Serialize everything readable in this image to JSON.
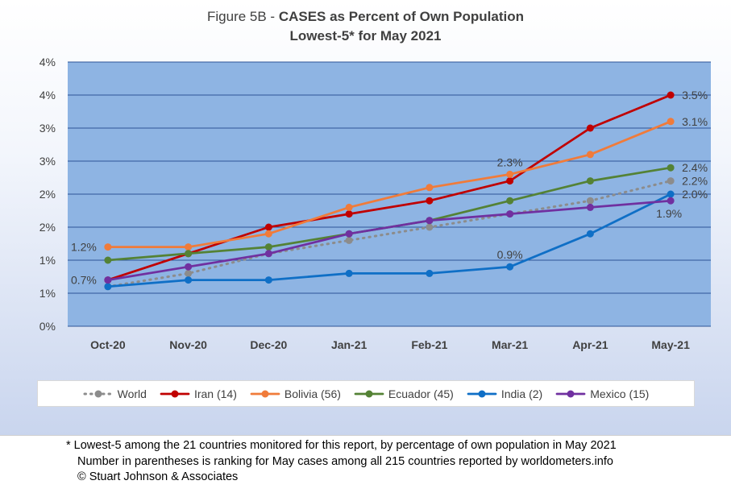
{
  "title": {
    "prefix": "Figure 5B - ",
    "bold_part": "CASES as Percent of Own Population",
    "line2": "Lowest-5* for May 2021"
  },
  "chart_data": {
    "type": "line",
    "categories": [
      "Oct-20",
      "Nov-20",
      "Dec-20",
      "Jan-21",
      "Feb-21",
      "Mar-21",
      "Apr-21",
      "May-21"
    ],
    "y_tick_labels": [
      "0%",
      "1%",
      "1%",
      "2%",
      "2%",
      "3%",
      "3%",
      "4%",
      "4%"
    ],
    "ylim": [
      0,
      4
    ],
    "grid": true,
    "legend_position": "bottom",
    "series": [
      {
        "name": "World",
        "color": "#8c8c8c",
        "dashed": true,
        "values": [
          0.6,
          0.8,
          1.1,
          1.3,
          1.5,
          1.7,
          1.9,
          2.2
        ]
      },
      {
        "name": "Iran (14)",
        "color": "#c00000",
        "dashed": false,
        "values": [
          0.7,
          1.1,
          1.5,
          1.7,
          1.9,
          2.2,
          3.0,
          3.5
        ]
      },
      {
        "name": "Bolivia (56)",
        "color": "#f07b3a",
        "dashed": false,
        "values": [
          1.2,
          1.2,
          1.4,
          1.8,
          2.1,
          2.3,
          2.6,
          3.1
        ]
      },
      {
        "name": "Ecuador (45)",
        "color": "#548235",
        "dashed": false,
        "values": [
          1.0,
          1.1,
          1.2,
          1.4,
          1.6,
          1.9,
          2.2,
          2.4
        ]
      },
      {
        "name": "India (2)",
        "color": "#0f6fc6",
        "dashed": false,
        "values": [
          0.6,
          0.7,
          0.7,
          0.8,
          0.8,
          0.9,
          1.4,
          2.0
        ]
      },
      {
        "name": "Mexico (15)",
        "color": "#7030a0",
        "dashed": false,
        "values": [
          0.7,
          0.9,
          1.1,
          1.4,
          1.6,
          1.7,
          1.8,
          1.9
        ]
      }
    ],
    "annotations": [
      {
        "text": "1.2%",
        "series": "Bolivia (56)",
        "index": 0,
        "pos": "left"
      },
      {
        "text": "0.7%",
        "series": "Iran (14)",
        "index": 0,
        "pos": "left"
      },
      {
        "text": "2.3%",
        "series": "Bolivia (56)",
        "index": 5,
        "pos": "above"
      },
      {
        "text": "0.9%",
        "series": "India (2)",
        "index": 5,
        "pos": "above"
      },
      {
        "text": "3.5%",
        "series": "Iran (14)",
        "index": 7,
        "pos": "right"
      },
      {
        "text": "3.1%",
        "series": "Bolivia (56)",
        "index": 7,
        "pos": "right"
      },
      {
        "text": "2.4%",
        "series": "Ecuador (45)",
        "index": 7,
        "pos": "right"
      },
      {
        "text": "2.2%",
        "series": "World",
        "index": 7,
        "pos": "right"
      },
      {
        "text": "2.0%",
        "series": "India (2)",
        "index": 7,
        "pos": "right"
      },
      {
        "text": "1.9%",
        "series": "Mexico (15)",
        "index": 7,
        "pos": "below-left"
      }
    ]
  },
  "footnote": {
    "line1": "* Lowest-5 among the 21 countries monitored for this report, by percentage of own population in May 2021",
    "line2": "Number in parentheses is ranking for May cases among all 215 countries reported by worldometers.info",
    "line3": "© Stuart Johnson & Associates"
  }
}
